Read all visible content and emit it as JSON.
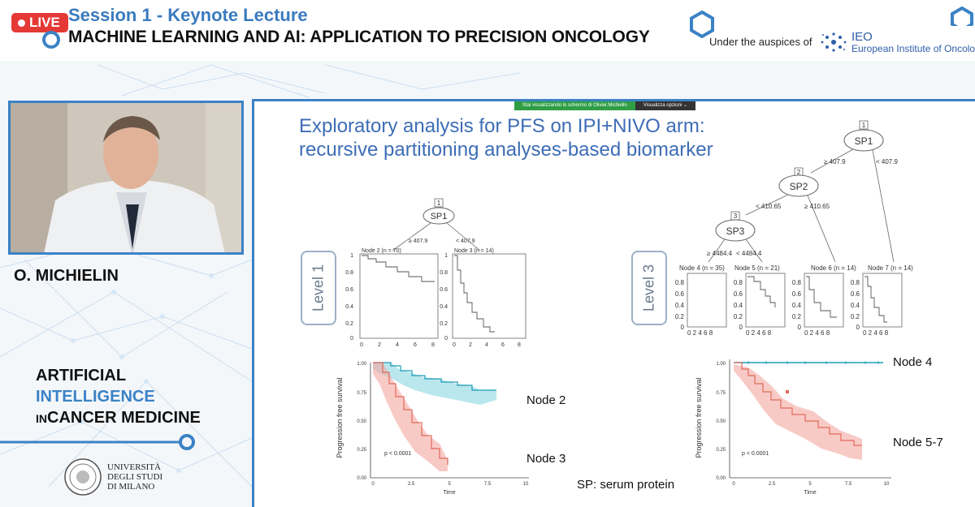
{
  "header": {
    "live_badge": "LIVE",
    "session": "Session 1 - Keynote Lecture",
    "title": "MACHINE LEARNING AND AI: APPLICATION TO PRECISION ONCOLOGY",
    "auspices": "Under the auspices of",
    "ieo_abbr": "IEO",
    "ieo_name": "European Institute of Oncology"
  },
  "sidebar": {
    "speaker": "O. MICHIELIN",
    "event_line1": "ARTIFICIAL",
    "event_line2": "INTELLIGENCE",
    "event_line3_prefix": "IN",
    "event_line3": "CANCER MEDICINE",
    "university": [
      "UNIVERSITÀ",
      "DEGLI STUDI",
      "DI MILANO"
    ]
  },
  "screenshare": {
    "banner": "Stai visualizzando lo schermo di Olivier.Michielin",
    "options": "Visualizza opzioni ⌄"
  },
  "slide": {
    "title_line1": "Exploratory analysis for PFS on IPI+NIVO arm:",
    "title_line2": "recursive partitioning analyses-based biomarker",
    "footnote": "SP: serum protein",
    "level1": {
      "label": "Level 1",
      "root": {
        "id": "1",
        "name": "SP1"
      },
      "split_left": "≥ 407.9",
      "split_right": "< 407.9",
      "node_left": "Node 2 (n = 70)",
      "node_right": "Node 3 (n = 14)",
      "y_ticks": [
        "1",
        "0.8",
        "0.6",
        "0.4",
        "0.2",
        "0"
      ],
      "x_ticks": [
        "0",
        "2",
        "4",
        "6",
        "8"
      ],
      "km_ylabel": "Progression free survival",
      "km_xlabel": "Time",
      "km_y_ticks": [
        "1.00",
        "0.75",
        "0.50",
        "0.25",
        "0.00"
      ],
      "km_x_ticks": [
        "0",
        "2.5",
        "5",
        "7.5",
        "10"
      ],
      "pvalue": "p < 0.0001",
      "curve_labels": [
        "Node 2",
        "Node 3"
      ]
    },
    "level3": {
      "label": "Level 3",
      "nodes": [
        {
          "id": "1",
          "name": "SP1",
          "left": "≥ 407.9",
          "right": "< 407.9"
        },
        {
          "id": "2",
          "name": "SP2",
          "left": "< 410.65",
          "right": "≥ 410.65"
        },
        {
          "id": "3",
          "name": "SP3",
          "left": "≥ 4484.4",
          "right": "< 4484.4"
        }
      ],
      "leaves": [
        "Node 4 (n = 35)",
        "Node 5 (n = 21)",
        "Node 6 (n = 14)",
        "Node 7 (n = 14)"
      ],
      "y_ticks": [
        "0.8",
        "0.6",
        "0.4",
        "0.2",
        "0"
      ],
      "x_ticks": "0 2 4 6 8",
      "km_ylabel": "Progression free survival",
      "km_xlabel": "Time",
      "km_y_ticks": [
        "1.00",
        "0.75",
        "0.50",
        "0.25",
        "0.00"
      ],
      "km_x_ticks": [
        "0",
        "2.5",
        "5",
        "7.5",
        "10"
      ],
      "pvalue": "p < 0.0001",
      "curve_labels": [
        "Node 4",
        "Node 5-7"
      ]
    }
  },
  "colors": {
    "accent": "#3b82c6",
    "live": "#e53935",
    "teal_curve": "#1f9bb5",
    "red_curve": "#e06a5a"
  }
}
